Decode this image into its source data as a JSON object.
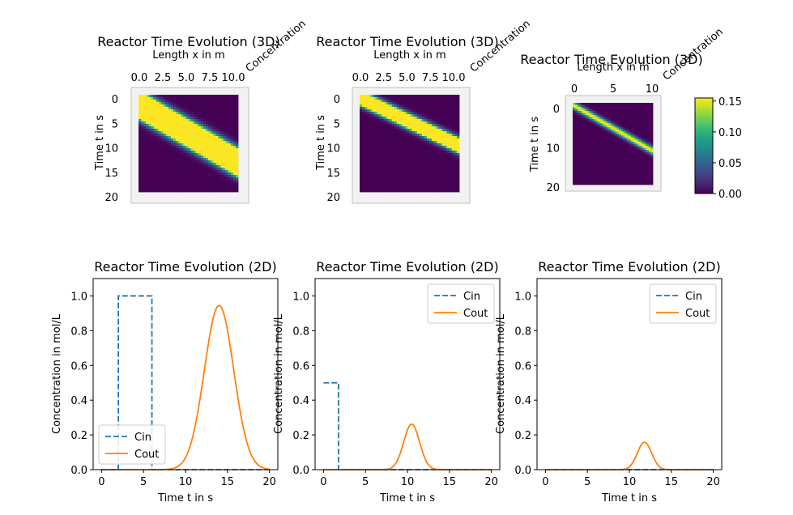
{
  "figure": {
    "background": "#ffffff"
  },
  "colorbar": {
    "ticks": [
      0.0,
      0.05,
      0.1,
      0.15
    ],
    "tick_labels": [
      "0.00",
      "0.05",
      "0.10",
      "0.15"
    ],
    "range": [
      0,
      0.155
    ],
    "colormap": "viridis"
  },
  "chart_data": [
    {
      "type": "heatmap",
      "title": "Reactor Time Evolution (3D)",
      "xlabel": "Length x in m",
      "ylabel": "Time t in s",
      "zlabel": "Concentration",
      "x_ticks": [
        "0.0",
        "2.5",
        "5.0",
        "7.5",
        "10.0"
      ],
      "y_ticks": [
        "0",
        "5",
        "10",
        "15",
        "20"
      ],
      "xlim": [
        0,
        10
      ],
      "ylim": [
        0,
        20
      ],
      "pulse": {
        "t0_at_x0": 2,
        "t0_at_x10": 14,
        "width_s": 3.2,
        "peak": 1.0
      }
    },
    {
      "type": "heatmap",
      "title": "Reactor Time Evolution (3D)",
      "xlabel": "Length x in m",
      "ylabel": "Time t in s",
      "zlabel": "Concentration",
      "x_ticks": [
        "0.0",
        "2.5",
        "5.0",
        "7.5",
        "10.0"
      ],
      "y_ticks": [
        "0",
        "5",
        "10",
        "15",
        "20"
      ],
      "xlim": [
        0,
        10
      ],
      "ylim": [
        0,
        20
      ],
      "pulse": {
        "t0_at_x0": 0.6,
        "t0_at_x10": 10.5,
        "width_s": 2.0,
        "peak": 0.5
      }
    },
    {
      "type": "heatmap",
      "title": "Reactor Time Evolution (3D)",
      "xlabel": "Length x in m",
      "ylabel": "Time t in s",
      "zlabel": "Concentration",
      "x_ticks": [
        "0",
        "5",
        "10"
      ],
      "y_ticks": [
        "0",
        "10",
        "20"
      ],
      "xlim": [
        0,
        10
      ],
      "ylim": [
        0,
        20
      ],
      "pulse": {
        "t0_at_x0": 0.5,
        "t0_at_x10": 11.8,
        "width_s": 1.5,
        "peak": 0.16
      }
    },
    {
      "type": "line",
      "title": "Reactor Time Evolution (2D)",
      "xlabel": "Time t in s",
      "ylabel": "Concentration in mol/L",
      "xlim": [
        -1,
        21
      ],
      "ylim": [
        0,
        1.1
      ],
      "x_ticks": [
        0,
        5,
        10,
        15,
        20
      ],
      "y_ticks": [
        0.0,
        0.2,
        0.4,
        0.6,
        0.8,
        1.0
      ],
      "x_tick_labels": [
        "0",
        "5",
        "10",
        "15",
        "20"
      ],
      "y_tick_labels": [
        "0.0",
        "0.2",
        "0.4",
        "0.6",
        "0.8",
        "1.0"
      ],
      "legend_position": "lower-left",
      "series": [
        {
          "name": "Cin",
          "style": "dashed",
          "color": "#1f77b4",
          "x": [
            0,
            2,
            2,
            6,
            6,
            20
          ],
          "y": [
            0,
            0,
            1,
            1,
            0,
            0
          ]
        },
        {
          "name": "Cout",
          "style": "solid",
          "color": "#ff7f0e",
          "gauss": {
            "center": 14,
            "sigma": 1.75,
            "peak": 0.945
          }
        }
      ]
    },
    {
      "type": "line",
      "title": "Reactor Time Evolution (2D)",
      "xlabel": "Time t in s",
      "ylabel": "Concentration in mol/L",
      "xlim": [
        -1,
        21
      ],
      "ylim": [
        0,
        1.1
      ],
      "x_ticks": [
        0,
        5,
        10,
        15,
        20
      ],
      "y_ticks": [
        0.0,
        0.2,
        0.4,
        0.6,
        0.8,
        1.0
      ],
      "x_tick_labels": [
        "0",
        "5",
        "10",
        "15",
        "20"
      ],
      "y_tick_labels": [
        "0.0",
        "0.2",
        "0.4",
        "0.6",
        "0.8",
        "1.0"
      ],
      "legend_position": "upper-right",
      "series": [
        {
          "name": "Cin",
          "style": "dashed",
          "color": "#1f77b4",
          "x": [
            0,
            1.8,
            1.8,
            2,
            20
          ],
          "y": [
            0.5,
            0.5,
            0,
            0,
            0
          ]
        },
        {
          "name": "Cout",
          "style": "solid",
          "color": "#ff7f0e",
          "gauss": {
            "center": 10.5,
            "sigma": 0.95,
            "peak": 0.262
          }
        }
      ]
    },
    {
      "type": "line",
      "title": "Reactor Time Evolution (2D)",
      "xlabel": "Time t in s",
      "ylabel": "Concentration in mol/L",
      "xlim": [
        -1,
        21
      ],
      "ylim": [
        0,
        1.1
      ],
      "x_ticks": [
        0,
        5,
        10,
        15,
        20
      ],
      "y_ticks": [
        0.0,
        0.2,
        0.4,
        0.6,
        0.8,
        1.0
      ],
      "x_tick_labels": [
        "0",
        "5",
        "10",
        "15",
        "20"
      ],
      "y_tick_labels": [
        "0.0",
        "0.2",
        "0.4",
        "0.6",
        "0.8",
        "1.0"
      ],
      "legend_position": "upper-right",
      "series": [
        {
          "name": "Cin",
          "style": "dashed",
          "color": "#1f77b4",
          "x": [
            0,
            20
          ],
          "y": [
            0,
            0
          ]
        },
        {
          "name": "Cout",
          "style": "solid",
          "color": "#ff7f0e",
          "gauss": {
            "center": 11.8,
            "sigma": 0.85,
            "peak": 0.158
          }
        }
      ]
    }
  ]
}
